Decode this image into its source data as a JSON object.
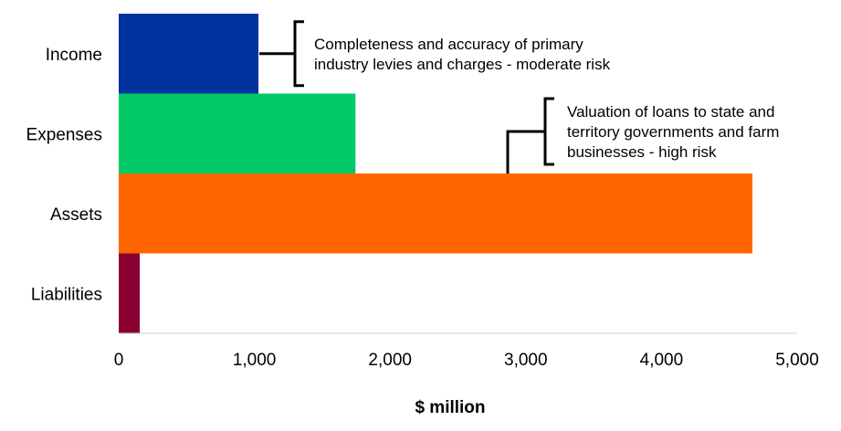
{
  "chart_data": {
    "type": "bar",
    "orientation": "horizontal",
    "categories": [
      "Income",
      "Expenses",
      "Assets",
      "Liabilities"
    ],
    "values": [
      1030,
      1745,
      4670,
      155
    ],
    "colors": [
      "#0033a0",
      "#00c965",
      "#ff6600",
      "#8b0033"
    ],
    "xlabel": "$ million",
    "ylabel": "",
    "xlim": [
      0,
      5000
    ],
    "xticks": [
      0,
      1000,
      2000,
      3000,
      4000,
      5000
    ],
    "xtick_labels": [
      "0",
      "1,000",
      "2,000",
      "3,000",
      "4,000",
      "5,000"
    ],
    "grid": false,
    "legend": "none",
    "annotations": [
      {
        "category": "Income",
        "lines": [
          "Completeness and accuracy of primary",
          "industry levies and charges - moderate risk"
        ]
      },
      {
        "category": "Assets",
        "lines": [
          "Valuation of loans to state and",
          "territory governments and farm",
          "businesses - high risk"
        ]
      }
    ]
  }
}
